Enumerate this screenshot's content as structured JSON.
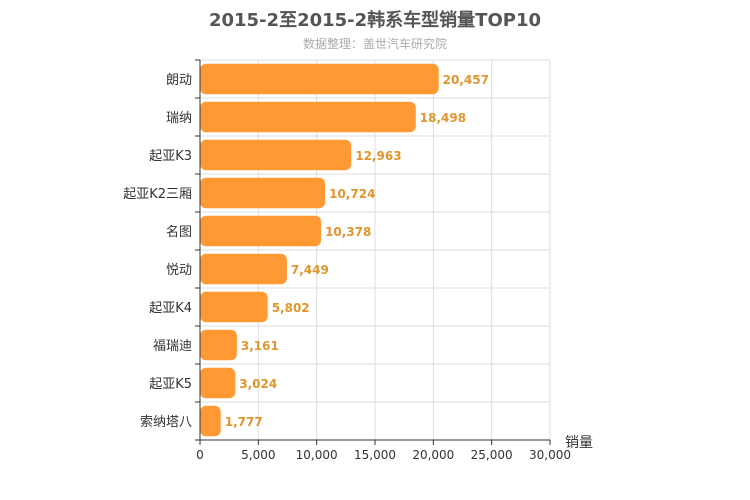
{
  "chart_data": {
    "type": "bar",
    "orientation": "horizontal",
    "title": "2015-2至2015-2韩系车型销量TOP10",
    "subtitle": "数据整理：盖世汽车研究院",
    "categories": [
      "朗动",
      "瑞纳",
      "起亚K3",
      "起亚K2三厢",
      "名图",
      "悦动",
      "起亚K4",
      "福瑞迪",
      "起亚K5",
      "索纳塔八"
    ],
    "values": [
      20457,
      18498,
      12963,
      10724,
      10378,
      7449,
      5802,
      3161,
      3024,
      1777
    ],
    "value_labels": [
      "20,457",
      "18,498",
      "12,963",
      "10,724",
      "10,378",
      "7,449",
      "5,802",
      "3,161",
      "3,024",
      "1,777"
    ],
    "xlabel": "销量",
    "ylabel": "",
    "xlim": [
      0,
      30000
    ],
    "xticks": [
      0,
      5000,
      10000,
      15000,
      20000,
      25000,
      30000
    ],
    "xtick_labels": [
      "0",
      "5,000",
      "10,000",
      "15,000",
      "20,000",
      "25,000",
      "30,000"
    ],
    "grid": true,
    "bar_color": "#ff9933",
    "label_color": "#e0952e"
  }
}
